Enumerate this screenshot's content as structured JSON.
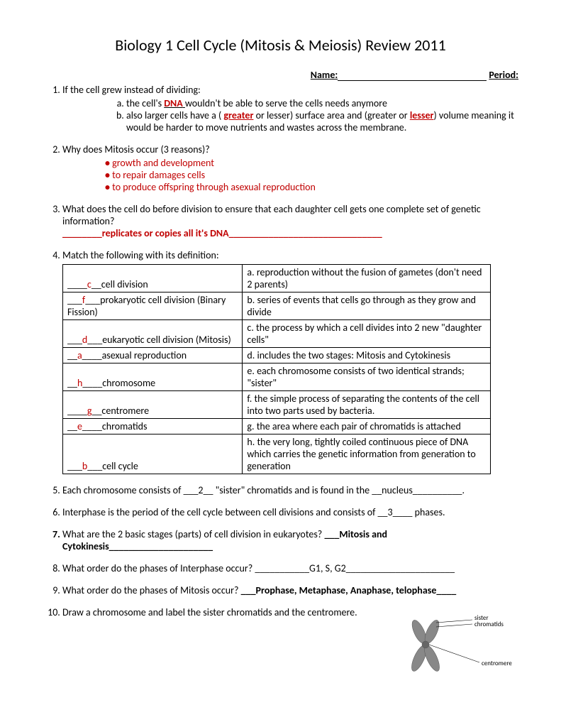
{
  "title": "Biology 1 Cell Cycle (Mitosis & Meiosis) Review 2011",
  "header": {
    "name": "Name:",
    "period": "Period:"
  },
  "q1": {
    "text": "If the cell grew instead of dividing:",
    "a_pre": "the cell's ",
    "a_ans": "DNA",
    "a_post": "  wouldn't be able to serve the cells needs anymore",
    "b_pre": "also larger cells have a  ( ",
    "b_ans1": "greater",
    "b_mid": "  or  lesser)  surface area and  (greater  or ",
    "b_ans2": "lesser",
    "b_post": ") volume meaning it would be harder to move nutrients and wastes across the membrane."
  },
  "q2": {
    "text": "Why does Mitosis occur (3 reasons)?",
    "r1": "growth and development",
    "r2": "to repair damages cells",
    "r3": "to produce offspring through asexual reproduction"
  },
  "q3": {
    "text": "What does the cell do before division to ensure that each daughter cell gets one complete set of genetic information?",
    "blank": "________",
    "ans": "replicates or copies all it's DNA",
    "trail": "_______________________________"
  },
  "q4": {
    "text": "Match the following with its definition:",
    "rows": [
      {
        "l_pre": "____",
        "l_ans": "c",
        "l_post": "__cell division",
        "r": "a. reproduction without the fusion of gametes (don't need 2 parents)"
      },
      {
        "l_pre": "___",
        "l_ans": "f",
        "l_post": "___prokaryotic cell division (Binary Fission)",
        "r": "b. series of events that cells go through as they grow  and divide"
      },
      {
        "l_pre": "___",
        "l_ans": "d",
        "l_post": "___eukaryotic cell division (Mitosis)",
        "r": "c. the process by which a cell divides into 2 new \"daughter cells\""
      },
      {
        "l_pre": "__",
        "l_ans": "a",
        "l_post": "____asexual reproduction",
        "r": "d. includes the two stages: Mitosis and Cytokinesis"
      },
      {
        "l_pre": "__",
        "l_ans": "h",
        "l_post": "____chromosome",
        "r": "e. each chromosome consists of two identical strands; \"sister\""
      },
      {
        "l_pre": "____",
        "l_ans": "g",
        "l_post": "__centromere",
        "r": "f. the simple process of separating the contents of the cell into two parts used by bacteria."
      },
      {
        "l_pre": "__",
        "l_ans": "e",
        "l_post": "____chromatids",
        "r": "g. the area where each pair of chromatids is attached"
      },
      {
        "l_pre": "___",
        "l_ans": "b",
        "l_post": "___cell cycle",
        "r": "h. the very long, tightly coiled continuous piece of DNA which carries the genetic information from generation to generation"
      }
    ]
  },
  "q5": "Each chromosome consists of ___2__ \"sister\" chromatids and is found in the __nucleus__________.",
  "q6": "Interphase is the period of the cell cycle between cell divisions and consists of __3____ phases.",
  "q7": {
    "text": "What are the 2 basic stages (parts) of cell division in eukaryotes? ",
    "ans": "___Mitosis and Cytokinesis_____________________"
  },
  "q8": {
    "text": "What order do the phases of Interphase occur? ",
    "ans": "___________G1, S, G2______________________"
  },
  "q9": {
    "text": "What order do the phases of Mitosis occur? ",
    "ans": "___Prophase, Metaphase, Anaphase, telophase____"
  },
  "q10": "Draw a chromosome and label the sister chromatids and the centromere.",
  "diagram": {
    "label1": "sister",
    "label2": "chromatids",
    "label3": "centromere"
  }
}
